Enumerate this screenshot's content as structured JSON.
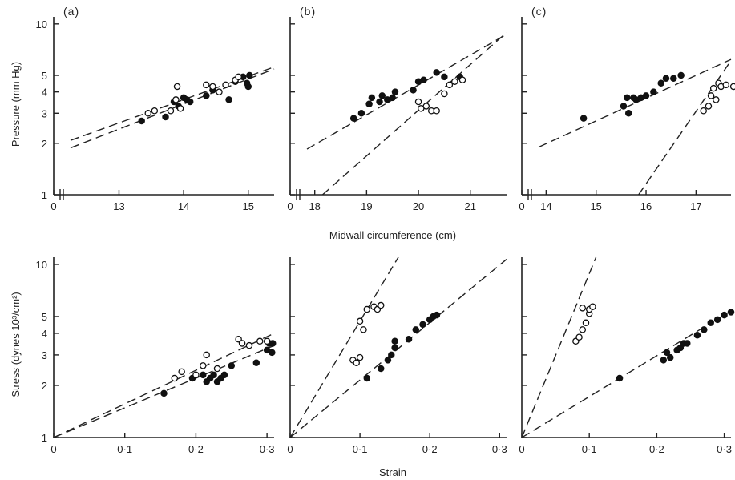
{
  "figure": {
    "pressure_ylabel": "Pressure (mm Hg)",
    "stress_ylabel": "Stress (dynes 10³/cm²)",
    "circumference_xlabel": "Midwall circumference (cm)",
    "strain_xlabel": "Strain"
  },
  "chart_data": [
    {
      "panel": "(a)",
      "row": "top",
      "col": 0,
      "type": "scatter",
      "scale_y": "log",
      "xlabel": "",
      "ylabel": "Pressure (mm Hg)",
      "x_ticks": [
        "13",
        "14",
        "15"
      ],
      "x_tick_values": [
        13,
        14,
        15
      ],
      "x_zero_label": "0",
      "y_ticks": [
        "1",
        "2",
        "3",
        "4",
        "5",
        "10"
      ],
      "y_tick_values": [
        1,
        2,
        3,
        4,
        5,
        10
      ],
      "xlim": [
        12.25,
        15.4
      ],
      "ylim": [
        1,
        11
      ],
      "axis_break": true,
      "series": [
        {
          "filled": true,
          "points": [
            [
              13.35,
              2.7
            ],
            [
              13.72,
              2.85
            ],
            [
              13.85,
              3.5
            ],
            [
              13.92,
              3.3
            ],
            [
              14.0,
              3.7
            ],
            [
              14.05,
              3.6
            ],
            [
              14.1,
              3.5
            ],
            [
              14.35,
              3.8
            ],
            [
              14.45,
              4.1
            ],
            [
              14.7,
              3.6
            ],
            [
              14.8,
              4.6
            ],
            [
              14.92,
              4.9
            ],
            [
              14.98,
              4.5
            ],
            [
              15.0,
              4.3
            ],
            [
              15.02,
              5.0
            ]
          ]
        },
        {
          "filled": false,
          "points": [
            [
              13.45,
              3.0
            ],
            [
              13.55,
              3.1
            ],
            [
              13.8,
              3.1
            ],
            [
              13.88,
              3.6
            ],
            [
              13.9,
              4.3
            ],
            [
              13.95,
              3.2
            ],
            [
              14.35,
              4.4
            ],
            [
              14.45,
              4.3
            ],
            [
              14.55,
              4.0
            ],
            [
              14.65,
              4.4
            ],
            [
              14.8,
              4.7
            ],
            [
              14.85,
              4.9
            ]
          ]
        }
      ],
      "lines": [
        [
          [
            12.25,
            2.08
          ],
          [
            15.4,
            5.6
          ]
        ],
        [
          [
            12.25,
            1.88
          ],
          [
            15.4,
            5.45
          ]
        ]
      ]
    },
    {
      "panel": "(b)",
      "row": "top",
      "col": 1,
      "type": "scatter",
      "scale_y": "log",
      "xlabel": "Midwall circumference (cm)",
      "ylabel": "",
      "x_ticks": [
        "18",
        "19",
        "20",
        "21"
      ],
      "x_tick_values": [
        18,
        19,
        20,
        21
      ],
      "x_zero_label": "0",
      "y_ticks": [],
      "y_tick_values": [
        1,
        2,
        3,
        4,
        5,
        10
      ],
      "xlim": [
        17.85,
        21.7
      ],
      "ylim": [
        1,
        11
      ],
      "axis_break": true,
      "series": [
        {
          "filled": true,
          "points": [
            [
              18.75,
              2.8
            ],
            [
              18.9,
              3.0
            ],
            [
              19.05,
              3.4
            ],
            [
              19.1,
              3.7
            ],
            [
              19.25,
              3.5
            ],
            [
              19.3,
              3.8
            ],
            [
              19.4,
              3.6
            ],
            [
              19.5,
              3.7
            ],
            [
              19.55,
              4.0
            ],
            [
              19.9,
              4.1
            ],
            [
              20.0,
              4.6
            ],
            [
              20.1,
              4.7
            ],
            [
              20.35,
              5.2
            ],
            [
              20.5,
              4.9
            ],
            [
              20.8,
              4.9
            ]
          ]
        },
        {
          "filled": false,
          "points": [
            [
              20.0,
              3.5
            ],
            [
              20.05,
              3.2
            ],
            [
              20.15,
              3.3
            ],
            [
              20.25,
              3.1
            ],
            [
              20.35,
              3.1
            ],
            [
              20.5,
              3.9
            ],
            [
              20.6,
              4.4
            ],
            [
              20.7,
              4.6
            ],
            [
              20.85,
              4.7
            ]
          ]
        }
      ],
      "lines": [
        [
          [
            17.85,
            1.85
          ],
          [
            21.7,
            8.7
          ]
        ],
        [
          [
            18.15,
            1.0
          ],
          [
            21.7,
            8.9
          ]
        ]
      ]
    },
    {
      "panel": "(c)",
      "row": "top",
      "col": 2,
      "type": "scatter",
      "scale_y": "log",
      "xlabel": "",
      "ylabel": "",
      "x_ticks": [
        "14",
        "15",
        "16",
        "17"
      ],
      "x_tick_values": [
        14,
        15,
        16,
        17
      ],
      "x_zero_label": "0",
      "y_ticks": [],
      "y_tick_values": [
        1,
        2,
        3,
        4,
        5,
        10
      ],
      "xlim": [
        13.85,
        17.7
      ],
      "ylim": [
        1,
        11
      ],
      "axis_break": true,
      "series": [
        {
          "filled": true,
          "points": [
            [
              14.75,
              2.8
            ],
            [
              15.55,
              3.3
            ],
            [
              15.62,
              3.7
            ],
            [
              15.65,
              3.0
            ],
            [
              15.75,
              3.7
            ],
            [
              15.8,
              3.6
            ],
            [
              15.9,
              3.7
            ],
            [
              16.0,
              3.8
            ],
            [
              16.15,
              4.0
            ],
            [
              16.3,
              4.5
            ],
            [
              16.4,
              4.8
            ],
            [
              16.55,
              4.8
            ],
            [
              16.7,
              5.0
            ]
          ]
        },
        {
          "filled": false,
          "points": [
            [
              17.15,
              3.1
            ],
            [
              17.25,
              3.3
            ],
            [
              17.3,
              3.8
            ],
            [
              17.35,
              4.2
            ],
            [
              17.4,
              3.6
            ],
            [
              17.45,
              4.5
            ],
            [
              17.5,
              4.3
            ],
            [
              17.6,
              4.4
            ],
            [
              17.75,
              4.3
            ]
          ]
        }
      ],
      "lines": [
        [
          [
            13.85,
            1.9
          ],
          [
            17.7,
            6.2
          ]
        ],
        [
          [
            15.85,
            1.0
          ],
          [
            17.7,
            6.1
          ]
        ]
      ]
    },
    {
      "panel": "",
      "row": "bottom",
      "col": 0,
      "type": "scatter",
      "scale_y": "log",
      "xlabel": "",
      "ylabel": "Stress (dynes 10³/cm²)",
      "x_ticks": [
        "0",
        "0·1",
        "0·2",
        "0·3"
      ],
      "x_tick_values": [
        0,
        0.1,
        0.2,
        0.3
      ],
      "y_ticks": [
        "1",
        "2",
        "3",
        "4",
        "5",
        "10"
      ],
      "y_tick_values": [
        1,
        2,
        3,
        4,
        5,
        10
      ],
      "xlim": [
        0,
        0.31
      ],
      "ylim": [
        1,
        11
      ],
      "series": [
        {
          "filled": true,
          "points": [
            [
              0.155,
              1.8
            ],
            [
              0.195,
              2.2
            ],
            [
              0.21,
              2.3
            ],
            [
              0.215,
              2.1
            ],
            [
              0.22,
              2.2
            ],
            [
              0.225,
              2.3
            ],
            [
              0.23,
              2.1
            ],
            [
              0.235,
              2.2
            ],
            [
              0.24,
              2.3
            ],
            [
              0.25,
              2.6
            ],
            [
              0.285,
              2.7
            ],
            [
              0.3,
              3.2
            ],
            [
              0.303,
              3.5
            ],
            [
              0.307,
              3.1
            ],
            [
              0.308,
              3.5
            ]
          ]
        },
        {
          "filled": false,
          "points": [
            [
              0.17,
              2.2
            ],
            [
              0.18,
              2.4
            ],
            [
              0.2,
              2.3
            ],
            [
              0.21,
              2.6
            ],
            [
              0.215,
              3.0
            ],
            [
              0.23,
              2.5
            ],
            [
              0.26,
              3.7
            ],
            [
              0.265,
              3.5
            ],
            [
              0.275,
              3.4
            ],
            [
              0.29,
              3.6
            ],
            [
              0.3,
              3.6
            ]
          ]
        }
      ],
      "lines": [
        [
          [
            0,
            1.0
          ],
          [
            0.31,
            4.0
          ]
        ],
        [
          [
            0,
            1.0
          ],
          [
            0.31,
            3.4
          ]
        ]
      ]
    },
    {
      "panel": "",
      "row": "bottom",
      "col": 1,
      "type": "scatter",
      "scale_y": "log",
      "xlabel": "Strain",
      "ylabel": "",
      "x_ticks": [
        "0",
        "0·1",
        "0·2",
        "0·3"
      ],
      "x_tick_values": [
        0,
        0.1,
        0.2,
        0.3
      ],
      "y_ticks": [],
      "y_tick_values": [
        1,
        2,
        3,
        4,
        5,
        10
      ],
      "xlim": [
        0,
        0.31
      ],
      "ylim": [
        1,
        11
      ],
      "series": [
        {
          "filled": true,
          "points": [
            [
              0.11,
              2.2
            ],
            [
              0.13,
              2.5
            ],
            [
              0.14,
              2.8
            ],
            [
              0.145,
              3.0
            ],
            [
              0.15,
              3.3
            ],
            [
              0.15,
              3.6
            ],
            [
              0.17,
              3.7
            ],
            [
              0.18,
              4.2
            ],
            [
              0.19,
              4.5
            ],
            [
              0.2,
              4.8
            ],
            [
              0.205,
              5.0
            ],
            [
              0.21,
              5.1
            ]
          ]
        },
        {
          "filled": false,
          "points": [
            [
              0.09,
              2.8
            ],
            [
              0.095,
              2.7
            ],
            [
              0.1,
              2.9
            ],
            [
              0.1,
              4.7
            ],
            [
              0.105,
              4.2
            ],
            [
              0.11,
              5.5
            ],
            [
              0.12,
              5.7
            ],
            [
              0.125,
              5.5
            ],
            [
              0.13,
              5.8
            ]
          ]
        }
      ],
      "lines": [
        [
          [
            0,
            1.0
          ],
          [
            0.155,
            11.0
          ]
        ],
        [
          [
            0,
            1.0
          ],
          [
            0.31,
            10.7
          ]
        ]
      ]
    },
    {
      "panel": "",
      "row": "bottom",
      "col": 2,
      "type": "scatter",
      "scale_y": "log",
      "xlabel": "",
      "ylabel": "",
      "x_ticks": [
        "0",
        "0·1",
        "0·2",
        "0·3"
      ],
      "x_tick_values": [
        0,
        0.1,
        0.2,
        0.3
      ],
      "y_ticks": [],
      "y_tick_values": [
        1,
        2,
        3,
        4,
        5,
        10
      ],
      "xlim": [
        0,
        0.31
      ],
      "ylim": [
        1,
        11
      ],
      "series": [
        {
          "filled": true,
          "points": [
            [
              0.145,
              2.2
            ],
            [
              0.21,
              2.8
            ],
            [
              0.215,
              3.1
            ],
            [
              0.22,
              2.9
            ],
            [
              0.23,
              3.2
            ],
            [
              0.235,
              3.3
            ],
            [
              0.24,
              3.5
            ],
            [
              0.245,
              3.5
            ],
            [
              0.26,
              3.9
            ],
            [
              0.27,
              4.2
            ],
            [
              0.28,
              4.6
            ],
            [
              0.29,
              4.8
            ],
            [
              0.3,
              5.1
            ],
            [
              0.31,
              5.3
            ]
          ]
        },
        {
          "filled": false,
          "points": [
            [
              0.08,
              3.6
            ],
            [
              0.085,
              3.8
            ],
            [
              0.09,
              4.2
            ],
            [
              0.09,
              5.6
            ],
            [
              0.095,
              4.6
            ],
            [
              0.1,
              5.2
            ],
            [
              0.1,
              5.5
            ],
            [
              0.105,
              5.7
            ]
          ]
        }
      ],
      "lines": [
        [
          [
            0,
            1.0
          ],
          [
            0.11,
            11.0
          ]
        ],
        [
          [
            0,
            1.0
          ],
          [
            0.31,
            5.4
          ]
        ]
      ]
    }
  ]
}
